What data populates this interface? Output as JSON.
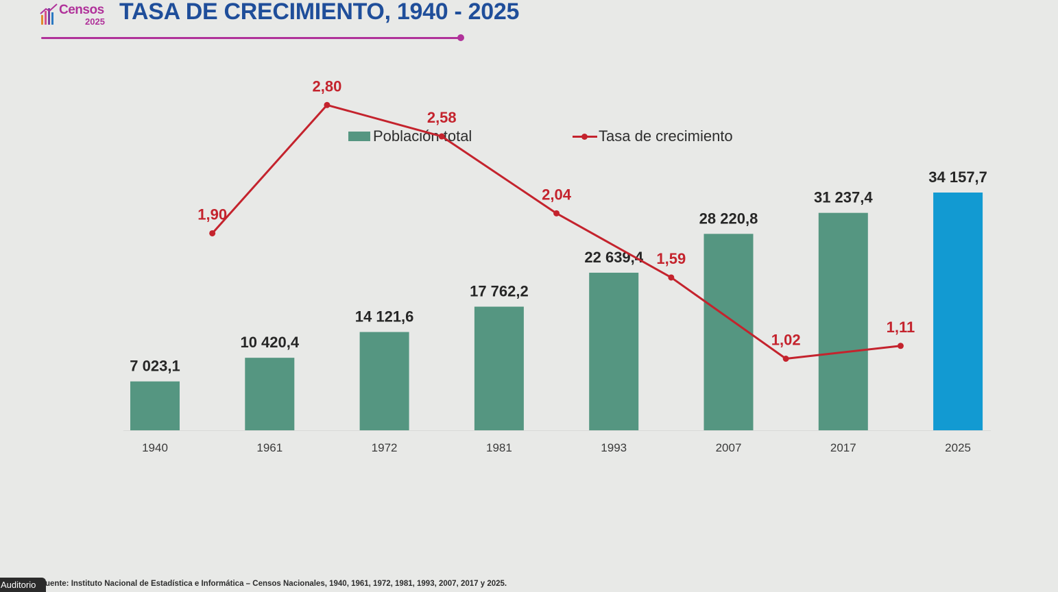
{
  "header": {
    "logo_word": "Censos",
    "logo_year": "2025",
    "title": "TASA DE CRECIMIENTO, 1940 - 2025"
  },
  "legend": {
    "bar_label": "Población total",
    "line_label": "Tasa de crecimiento"
  },
  "colors": {
    "bar": "#559681",
    "bar_highlight": "#129ad2",
    "line": "#c4232d",
    "title": "#1f4e9a",
    "accent": "#b0329a"
  },
  "chart_data": {
    "type": "bar",
    "categories": [
      "1940",
      "1961",
      "1972",
      "1981",
      "1993",
      "2007",
      "2017",
      "2025"
    ],
    "series": [
      {
        "name": "Población total",
        "type": "bar",
        "values": [
          7023.1,
          10420.4,
          14121.6,
          17762.2,
          22639.4,
          28220.8,
          31237.4,
          34157.7
        ],
        "labels": [
          "7 023,1",
          "10 420,4",
          "14 121,6",
          "17 762,2",
          "22 639,4",
          "28 220,8",
          "31 237,4",
          "34 157,7"
        ],
        "highlight_index": 7
      },
      {
        "name": "Tasa de crecimiento",
        "type": "line",
        "points": [
          {
            "x": "1940",
            "y": 1.9,
            "label": "1,90"
          },
          {
            "x": "1961",
            "y": 2.8,
            "label": "2,80"
          },
          {
            "x": "1972",
            "y": 2.58,
            "label": "2,58"
          },
          {
            "x": "1981",
            "y": 2.04,
            "label": "2,04"
          },
          {
            "x": "1993",
            "y": 1.59,
            "label": "1,59"
          },
          {
            "x": "2007",
            "y": 1.02,
            "label": "1,02"
          },
          {
            "x": "2017",
            "y": 1.11,
            "label": "1,11"
          }
        ]
      }
    ],
    "legend_position": "top",
    "grid": false
  },
  "footer": {
    "source": "uente: Instituto Nacional de Estadística e Informática – Censos Nacionales, 1940, 1961, 1972, 1981, 1993, 2007, 2017 y 2025."
  },
  "overlay": {
    "tag": "Auditorio"
  }
}
